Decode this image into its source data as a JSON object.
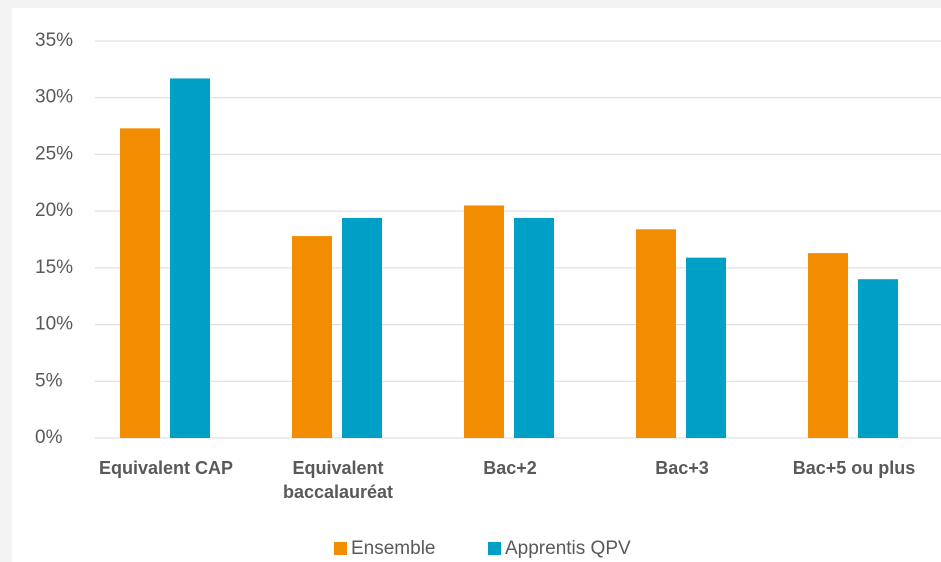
{
  "chart_data": {
    "type": "bar",
    "categories": [
      "Equivalent CAP",
      "Equivalent baccalauréat",
      "Bac+2",
      "Bac+3",
      "Bac+5 ou plus"
    ],
    "series": [
      {
        "name": "Ensemble",
        "color": "#f28c00",
        "values": [
          27.3,
          17.8,
          20.5,
          18.4,
          16.3
        ]
      },
      {
        "name": "Apprentis QPV",
        "color": "#00a0c6",
        "values": [
          31.7,
          19.4,
          19.4,
          15.9,
          14.0
        ]
      }
    ],
    "ylim": [
      0,
      35
    ],
    "yticks": [
      {
        "value": 0,
        "label": "0%"
      },
      {
        "value": 5,
        "label": "5%"
      },
      {
        "value": 10,
        "label": "10%"
      },
      {
        "value": 15,
        "label": "15%"
      },
      {
        "value": 20,
        "label": "20%"
      },
      {
        "value": 25,
        "label": "25%"
      },
      {
        "value": 30,
        "label": "30%"
      },
      {
        "value": 35,
        "label": "35%"
      }
    ],
    "grid": true,
    "legend": "bottom"
  }
}
